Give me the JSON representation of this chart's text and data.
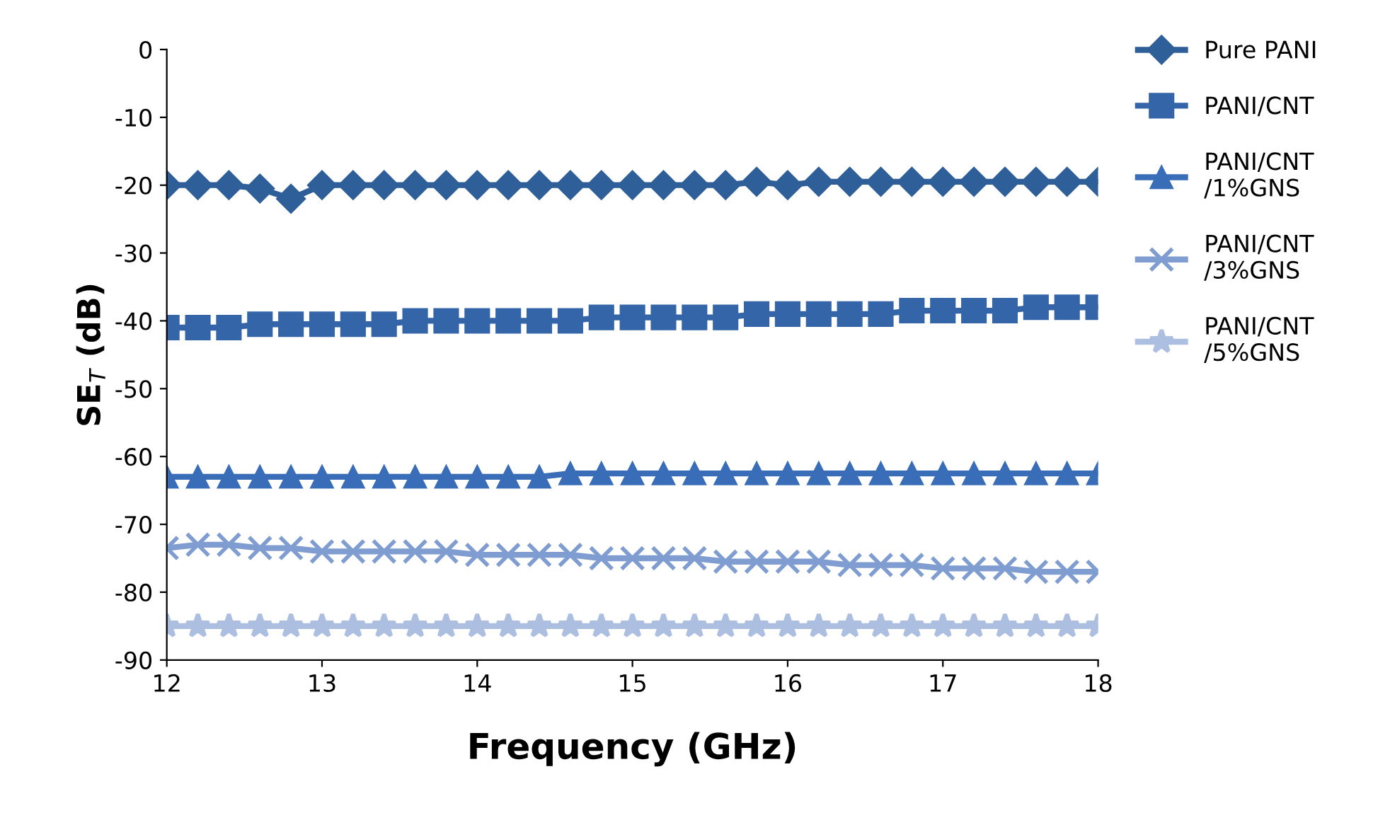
{
  "chart_data": {
    "type": "line",
    "xlabel": "Frequency (GHz)",
    "ylabel": "SE$_{T}$ (dB)",
    "x": [
      12.0,
      12.2,
      12.4,
      12.6,
      12.8,
      13.0,
      13.2,
      13.4,
      13.6,
      13.8,
      14.0,
      14.2,
      14.4,
      14.6,
      14.8,
      15.0,
      15.2,
      15.4,
      15.6,
      15.8,
      16.0,
      16.2,
      16.4,
      16.6,
      16.8,
      17.0,
      17.2,
      17.4,
      17.6,
      17.8,
      18.0
    ],
    "series": [
      {
        "name": "Pure PANI",
        "color": "#2f5f99",
        "marker": "diamond",
        "values": [
          -20,
          -20,
          -20,
          -20.5,
          -22,
          -20,
          -20,
          -20,
          -20,
          -20,
          -20,
          -20,
          -20,
          -20,
          -20,
          -20,
          -20,
          -20,
          -20,
          -19.5,
          -20,
          -19.5,
          -19.5,
          -19.5,
          -19.5,
          -19.5,
          -19.5,
          -19.5,
          -19.5,
          -19.5,
          -19.5
        ]
      },
      {
        "name": "PANI/CNT",
        "color": "#3465a8",
        "marker": "square",
        "values": [
          -41,
          -41,
          -41,
          -40.5,
          -40.5,
          -40.5,
          -40.5,
          -40.5,
          -40,
          -40,
          -40,
          -40,
          -40,
          -40,
          -39.5,
          -39.5,
          -39.5,
          -39.5,
          -39.5,
          -39,
          -39,
          -39,
          -39,
          -39,
          -38.5,
          -38.5,
          -38.5,
          -38.5,
          -38,
          -38,
          -38
        ]
      },
      {
        "name": "PANI/CNT\n/1%GNS",
        "color": "#3a6db8",
        "marker": "triangle",
        "values": [
          -63,
          -63,
          -63,
          -63,
          -63,
          -63,
          -63,
          -63,
          -63,
          -63,
          -63,
          -63,
          -63,
          -62.5,
          -62.5,
          -62.5,
          -62.5,
          -62.5,
          -62.5,
          -62.5,
          -62.5,
          -62.5,
          -62.5,
          -62.5,
          -62.5,
          -62.5,
          -62.5,
          -62.5,
          -62.5,
          -62.5,
          -62.5
        ]
      },
      {
        "name": "PANI/CNT\n/3%GNS",
        "color": "#7f9dd0",
        "marker": "cross",
        "values": [
          -73.5,
          -73,
          -73,
          -73.5,
          -73.5,
          -74,
          -74,
          -74,
          -74,
          -74,
          -74.5,
          -74.5,
          -74.5,
          -74.5,
          -75,
          -75,
          -75,
          -75,
          -75.5,
          -75.5,
          -75.5,
          -75.5,
          -76,
          -76,
          -76,
          -76.5,
          -76.5,
          -76.5,
          -77,
          -77,
          -77
        ]
      },
      {
        "name": "PANI/CNT\n/5%GNS",
        "color": "#adbfe0",
        "marker": "star",
        "values": [
          -85,
          -85,
          -85,
          -85,
          -85,
          -85,
          -85,
          -85,
          -85,
          -85,
          -85,
          -85,
          -85,
          -85,
          -85,
          -85,
          -85,
          -85,
          -85,
          -85,
          -85,
          -85,
          -85,
          -85,
          -85,
          -85,
          -85,
          -85,
          -85,
          -85,
          -85
        ]
      }
    ],
    "xlim": [
      12,
      18
    ],
    "xticks": [
      12,
      13,
      14,
      15,
      16,
      17,
      18
    ],
    "ylim": [
      -90,
      0
    ],
    "yticks": [
      -90,
      -80,
      -70,
      -60,
      -50,
      -40,
      -30,
      -20,
      -10,
      0
    ],
    "grid": false,
    "legend": "right",
    "line_style": "solid"
  }
}
